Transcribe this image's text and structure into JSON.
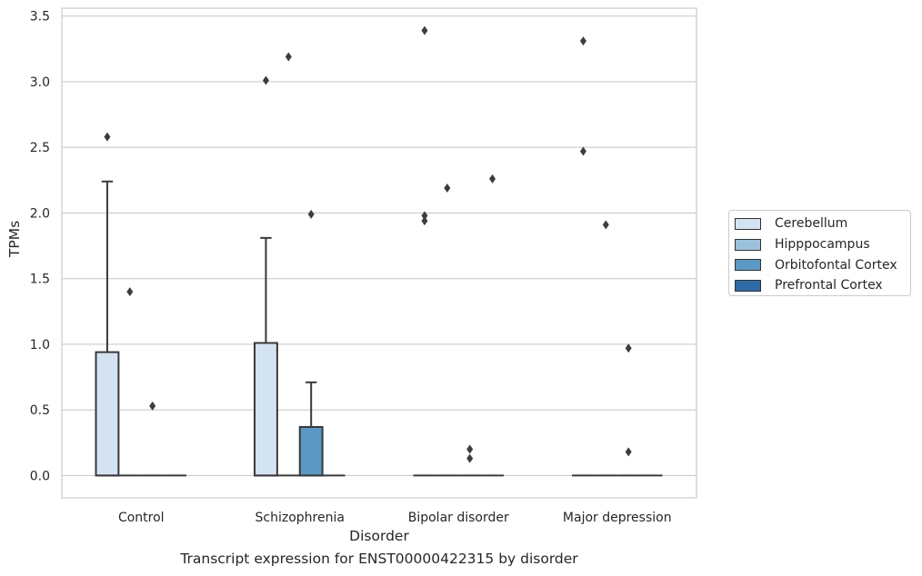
{
  "chart_data": {
    "type": "box",
    "title": "",
    "caption": "Transcript expression for ENST00000422315 by disorder",
    "xlabel": "Disorder",
    "ylabel": "TPMs",
    "ylim": [
      -0.17,
      3.56
    ],
    "yticks": [
      "0.0",
      "0.5",
      "1.0",
      "1.5",
      "2.0",
      "2.5",
      "3.0",
      "3.5"
    ],
    "ytick_values": [
      0,
      0.5,
      1.0,
      1.5,
      2.0,
      2.5,
      3.0,
      3.5
    ],
    "grid": true,
    "legend_position": "outside-right",
    "categories": [
      "Control",
      "Schizophrenia",
      "Bipolar disorder",
      "Major depression"
    ],
    "series": [
      {
        "name": "Cerebellum",
        "color": "#d3e3f1",
        "boxes": [
          {
            "q1": 0,
            "median": 0,
            "q3": 0.94,
            "whisker_low": 0,
            "whisker_high": 2.24,
            "outliers": [
              2.58
            ]
          },
          {
            "q1": 0,
            "median": 0,
            "q3": 1.01,
            "whisker_low": 0,
            "whisker_high": 1.81,
            "outliers": [
              3.01
            ]
          },
          {
            "q1": 0,
            "median": 0,
            "q3": 0,
            "whisker_low": 0,
            "whisker_high": 0,
            "outliers": [
              3.39,
              1.98,
              1.94
            ]
          },
          {
            "q1": 0,
            "median": 0,
            "q3": 0,
            "whisker_low": 0,
            "whisker_high": 0,
            "outliers": [
              3.31,
              2.47
            ]
          }
        ]
      },
      {
        "name": "Hipppocampus",
        "color": "#9ac2de",
        "boxes": [
          {
            "q1": 0,
            "median": 0,
            "q3": 0,
            "whisker_low": 0,
            "whisker_high": 0,
            "outliers": [
              1.4
            ]
          },
          {
            "q1": 0,
            "median": 0,
            "q3": 0,
            "whisker_low": 0,
            "whisker_high": 0,
            "outliers": [
              3.19
            ]
          },
          {
            "q1": 0,
            "median": 0,
            "q3": 0,
            "whisker_low": 0,
            "whisker_high": 0,
            "outliers": [
              2.19
            ]
          },
          {
            "q1": 0,
            "median": 0,
            "q3": 0,
            "whisker_low": 0,
            "whisker_high": 0,
            "outliers": [
              1.91
            ]
          }
        ]
      },
      {
        "name": "Orbitofontal Cortex",
        "color": "#5a99c5",
        "boxes": [
          {
            "q1": 0,
            "median": 0,
            "q3": 0,
            "whisker_low": 0,
            "whisker_high": 0,
            "outliers": [
              0.53
            ]
          },
          {
            "q1": 0,
            "median": 0,
            "q3": 0.37,
            "whisker_low": 0,
            "whisker_high": 0.71,
            "outliers": [
              1.99
            ]
          },
          {
            "q1": 0,
            "median": 0,
            "q3": 0,
            "whisker_low": 0,
            "whisker_high": 0,
            "outliers": [
              0.2,
              0.13
            ]
          },
          {
            "q1": 0,
            "median": 0,
            "q3": 0,
            "whisker_low": 0,
            "whisker_high": 0,
            "outliers": [
              0.97,
              0.18
            ]
          }
        ]
      },
      {
        "name": "Prefrontal Cortex",
        "color": "#2a6ba8",
        "boxes": [
          {
            "q1": 0,
            "median": 0,
            "q3": 0,
            "whisker_low": 0,
            "whisker_high": 0,
            "outliers": []
          },
          {
            "q1": 0,
            "median": 0,
            "q3": 0,
            "whisker_low": 0,
            "whisker_high": 0,
            "outliers": []
          },
          {
            "q1": 0,
            "median": 0,
            "q3": 0,
            "whisker_low": 0,
            "whisker_high": 0,
            "outliers": [
              2.26
            ]
          },
          {
            "q1": 0,
            "median": 0,
            "q3": 0,
            "whisker_low": 0,
            "whisker_high": 0,
            "outliers": []
          }
        ]
      }
    ]
  }
}
